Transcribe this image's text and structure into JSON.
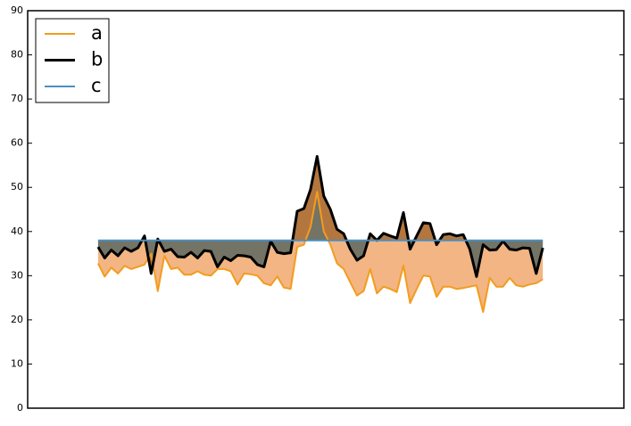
{
  "chart_data": {
    "type": "line",
    "x": [
      0,
      1,
      2,
      3,
      4,
      5,
      6,
      7,
      8,
      9,
      10,
      11,
      12,
      13,
      14,
      15,
      16,
      17,
      18,
      19,
      20,
      21,
      22,
      23,
      24,
      25,
      26,
      27,
      28,
      29,
      30,
      31,
      32,
      33,
      34,
      35,
      36,
      37,
      38,
      39,
      40,
      41,
      42,
      43,
      44,
      45,
      46,
      47,
      48,
      49,
      50,
      51,
      52,
      53,
      54,
      55,
      56,
      57,
      58,
      59,
      60,
      61,
      62,
      63,
      64,
      65,
      66,
      67
    ],
    "xlim": [
      -10.6,
      79.2
    ],
    "ylim": [
      0,
      90
    ],
    "yticks": [
      0,
      10,
      20,
      30,
      40,
      50,
      60,
      70,
      80,
      90
    ],
    "legend": "upper left",
    "fill_colors": [
      "#505040",
      "#e8781e"
    ],
    "series": [
      {
        "name": "a",
        "color": "#f39c1e",
        "values": [
          32.8,
          29.8,
          31.8,
          30.5,
          32.2,
          31.5,
          32,
          32.5,
          35,
          26.5,
          34.5,
          31.5,
          31.8,
          30.2,
          30.2,
          31,
          30.2,
          30,
          31.5,
          31.5,
          31,
          28,
          30.5,
          30.3,
          30,
          28.3,
          27.8,
          29.8,
          27.3,
          27,
          36.5,
          37,
          41,
          49,
          40,
          37,
          32.8,
          31.5,
          28.5,
          25.5,
          26.5,
          31.5,
          26,
          27.5,
          27,
          26.3,
          32.3,
          23.8,
          27,
          30,
          29.8,
          25.2,
          27.5,
          27.5,
          27,
          27.2,
          27.5,
          27.8,
          21.8,
          29.5,
          27.5,
          27.5,
          29.5,
          27.8,
          27.5,
          28,
          28.3,
          29.2
        ]
      },
      {
        "name": "b",
        "color": "#000000",
        "values": [
          36.5,
          34,
          35.8,
          34.5,
          36.3,
          35.5,
          36.3,
          39,
          30.5,
          38.3,
          35.5,
          36,
          34.3,
          34.2,
          35.3,
          34,
          35.7,
          35.5,
          32,
          34.2,
          33.4,
          34.6,
          34.5,
          34.2,
          32.5,
          32,
          37.8,
          35.3,
          35,
          35.2,
          44.6,
          45.2,
          49.5,
          57,
          48,
          45,
          40.5,
          39.5,
          36,
          33.5,
          34.5,
          39.5,
          38,
          39.6,
          39,
          38.5,
          44.3,
          36,
          39,
          42,
          41.8,
          37,
          39.3,
          39.5,
          39,
          39.3,
          36,
          29.8,
          37,
          35.8,
          35.9,
          37.8,
          36,
          35.8,
          36.3,
          36.2,
          30.5,
          36.3
        ]
      },
      {
        "name": "c",
        "color": "#4a8fc0",
        "values": [
          38,
          38,
          38,
          38,
          38,
          38,
          38,
          38,
          38,
          38,
          38,
          38,
          38,
          38,
          38,
          38,
          38,
          38,
          38,
          38,
          38,
          38,
          38,
          38,
          38,
          38,
          38,
          38,
          38,
          38,
          38,
          38,
          38,
          38,
          38,
          38,
          38,
          38,
          38,
          38,
          38,
          38,
          38,
          38,
          38,
          38,
          38,
          38,
          38,
          38,
          38,
          38,
          38,
          38,
          38,
          38,
          38,
          38,
          38,
          38,
          38,
          38,
          38,
          38,
          38,
          38,
          38,
          38
        ]
      }
    ]
  }
}
